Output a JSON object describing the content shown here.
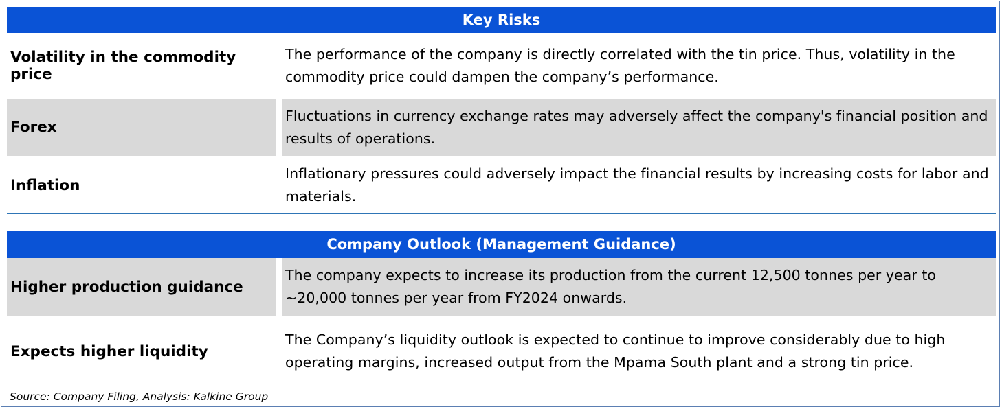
{
  "key_risks": {
    "title": "Key Risks",
    "rows": [
      {
        "label": "Volatility in the commodity price",
        "text": "The performance of the company is directly correlated with the tin price. Thus, volatility in the commodity price could dampen the company’s performance."
      },
      {
        "label": "Forex",
        "text": "Fluctuations in currency exchange rates may adversely affect the company's financial position and results of operations."
      },
      {
        "label": "Inflation",
        "text": "Inflationary pressures could adversely impact the financial results by increasing costs for labor and materials."
      }
    ]
  },
  "company_outlook": {
    "title": "Company Outlook (Management Guidance)",
    "rows": [
      {
        "label": "Higher production guidance",
        "text": "The company expects to increase its production from the current 12,500 tonnes per year to ~20,000 tonnes per year from FY2024 onwards."
      },
      {
        "label": "Expects higher liquidity",
        "text": "The Company’s liquidity outlook is expected to continue to improve considerably due to high operating margins, increased output from the Mpama South plant and a strong tin price."
      }
    ]
  },
  "source": "Source: Company Filing, Analysis: Kalkine Group",
  "colors": {
    "header_bg": "#0a53d6",
    "shaded_row_bg": "#d9d9d9",
    "rule": "#2e75b6"
  }
}
